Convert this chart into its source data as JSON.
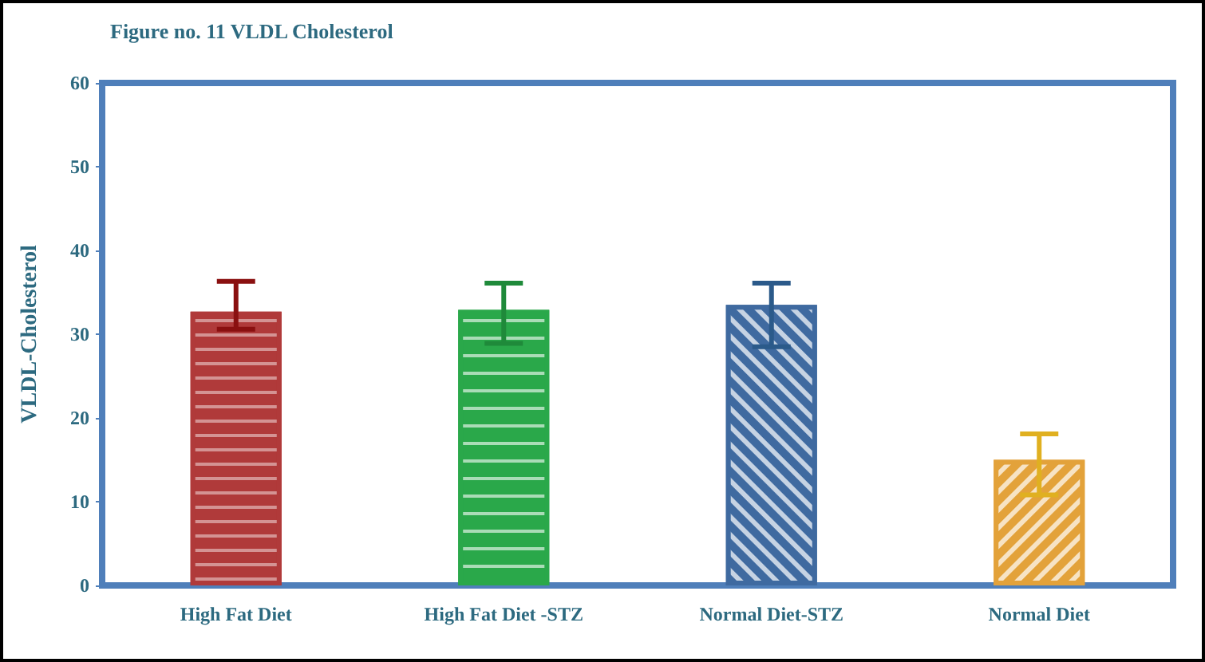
{
  "chart_data": {
    "type": "bar",
    "title": "Figure no. 11 VLDL Cholesterol",
    "ylabel": "VLDL-Cholesterol",
    "categories": [
      "High Fat Diet",
      "High Fat Diet -STZ",
      "Normal Diet-STZ",
      "Normal Diet"
    ],
    "values": [
      32.7,
      32.9,
      33.5,
      15.0
    ],
    "colors": [
      "#b03a3a",
      "#2aa84a",
      "#3f6aa0",
      "#e3a23a"
    ],
    "errors": [
      [
        30.6,
        36.3
      ],
      [
        28.9,
        36.1
      ],
      [
        28.5,
        36.1
      ],
      [
        10.8,
        18.1
      ]
    ],
    "ylim": [
      0,
      60
    ],
    "yticks": [
      0,
      10,
      20,
      30,
      40,
      50,
      60
    ],
    "grid": false
  }
}
